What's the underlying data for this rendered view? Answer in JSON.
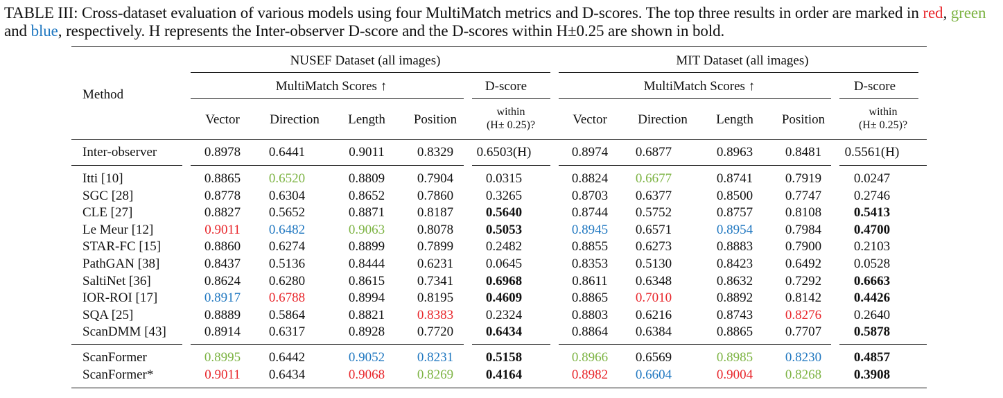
{
  "caption": {
    "prefix": "TABLE III: Cross-dataset evaluation of various models using four MultiMatch metrics and D-scores. The top three results in order are marked in ",
    "red_word": "red",
    "sep1": ", ",
    "green_word": "green",
    "sep2": " and ",
    "blue_word": "blue",
    "suffix": ", respectively. H represents the Inter-observer D-score and the D-scores within H±0.25 are shown in bold."
  },
  "header": {
    "method": "Method",
    "nusef": "NUSEF Dataset (all images)",
    "mit": "MIT Dataset (all images)",
    "multimatch": "MultiMatch Scores ↑",
    "dscore": "D-score",
    "vector": "Vector",
    "direction": "Direction",
    "length": "Length",
    "position": "Position",
    "within_line1": "within",
    "within_line2": "(H± 0.25)?"
  },
  "colors": {
    "red": "#e8262b",
    "green": "#7cb342",
    "blue": "#1f77c0"
  },
  "inter_observer": {
    "method": "Inter-observer",
    "vals": [
      "0.8978",
      "0.6441",
      "0.9011",
      "0.8329",
      "0.6503(H)",
      "0.8974",
      "0.6877",
      "0.8963",
      "0.8481",
      "0.5561(H)"
    ]
  },
  "rows": [
    {
      "method": "Itti [10]",
      "vals": [
        "0.8865",
        "0.6520",
        "0.8809",
        "0.7904",
        "0.0315",
        "0.8824",
        "0.6677",
        "0.8741",
        "0.7919",
        "0.0247"
      ],
      "style": [
        "",
        "green",
        "",
        "",
        "",
        "",
        "green",
        "",
        "",
        ""
      ]
    },
    {
      "method": "SGC [28]",
      "vals": [
        "0.8778",
        "0.6304",
        "0.8652",
        "0.7860",
        "0.3265",
        "0.8703",
        "0.6377",
        "0.8500",
        "0.7747",
        "0.2746"
      ],
      "style": [
        "",
        "",
        "",
        "",
        "",
        "",
        "",
        "",
        "",
        ""
      ]
    },
    {
      "method": "CLE [27]",
      "vals": [
        "0.8827",
        "0.5652",
        "0.8871",
        "0.8187",
        "0.5640",
        "0.8744",
        "0.5752",
        "0.8757",
        "0.8108",
        "0.5413"
      ],
      "style": [
        "",
        "",
        "",
        "",
        "bold",
        "",
        "",
        "",
        "",
        "bold"
      ]
    },
    {
      "method": "Le Meur [12]",
      "vals": [
        "0.9011",
        "0.6482",
        "0.9063",
        "0.8078",
        "0.5053",
        "0.8945",
        "0.6571",
        "0.8954",
        "0.7984",
        "0.4700"
      ],
      "style": [
        "red",
        "blue",
        "green",
        "",
        "bold",
        "blue",
        "",
        "blue",
        "",
        "bold"
      ]
    },
    {
      "method": "STAR-FC [15]",
      "vals": [
        "0.8860",
        "0.6274",
        "0.8899",
        "0.7899",
        "0.2482",
        "0.8855",
        "0.6273",
        "0.8883",
        "0.7900",
        "0.2103"
      ],
      "style": [
        "",
        "",
        "",
        "",
        "",
        "",
        "",
        "",
        "",
        ""
      ]
    },
    {
      "method": "PathGAN [38]",
      "vals": [
        "0.8437",
        "0.5136",
        "0.8444",
        "0.6231",
        "0.0645",
        "0.8353",
        "0.5130",
        "0.8423",
        "0.6492",
        "0.0528"
      ],
      "style": [
        "",
        "",
        "",
        "",
        "",
        "",
        "",
        "",
        "",
        ""
      ]
    },
    {
      "method": "SaltiNet [36]",
      "vals": [
        "0.8624",
        "0.6280",
        "0.8615",
        "0.7341",
        "0.6968",
        "0.8611",
        "0.6348",
        "0.8632",
        "0.7292",
        "0.6663"
      ],
      "style": [
        "",
        "",
        "",
        "",
        "bold",
        "",
        "",
        "",
        "",
        "bold"
      ]
    },
    {
      "method": "IOR-ROI [17]",
      "vals": [
        "0.8917",
        "0.6788",
        "0.8994",
        "0.8195",
        "0.4609",
        "0.8865",
        "0.7010",
        "0.8892",
        "0.8142",
        "0.4426"
      ],
      "style": [
        "blue",
        "red",
        "",
        "",
        "bold",
        "",
        "red",
        "",
        "",
        "bold"
      ]
    },
    {
      "method": "SQA [25]",
      "vals": [
        "0.8889",
        "0.5864",
        "0.8821",
        "0.8383",
        "0.2324",
        "0.8803",
        "0.6216",
        "0.8743",
        "0.8276",
        "0.2640"
      ],
      "style": [
        "",
        "",
        "",
        "red",
        "",
        "",
        "",
        "",
        "red",
        ""
      ]
    },
    {
      "method": "ScanDMM [43]",
      "vals": [
        "0.8914",
        "0.6317",
        "0.8928",
        "0.7720",
        "0.6434",
        "0.8864",
        "0.6384",
        "0.8865",
        "0.7707",
        "0.5878"
      ],
      "style": [
        "",
        "",
        "",
        "",
        "bold",
        "",
        "",
        "",
        "",
        "bold"
      ]
    }
  ],
  "ours": [
    {
      "method": "ScanFormer",
      "vals": [
        "0.8995",
        "0.6442",
        "0.9052",
        "0.8231",
        "0.5158",
        "0.8966",
        "0.6569",
        "0.8985",
        "0.8230",
        "0.4857"
      ],
      "style": [
        "green",
        "",
        "blue",
        "blue",
        "bold",
        "green",
        "",
        "green",
        "blue",
        "bold"
      ]
    },
    {
      "method": "ScanFormer*",
      "vals": [
        "0.9011",
        "0.6434",
        "0.9068",
        "0.8269",
        "0.4164",
        "0.8982",
        "0.6604",
        "0.9004",
        "0.8268",
        "0.3908"
      ],
      "style": [
        "red",
        "",
        "red",
        "green",
        "bold",
        "red",
        "blue",
        "red",
        "green",
        "bold"
      ]
    }
  ]
}
